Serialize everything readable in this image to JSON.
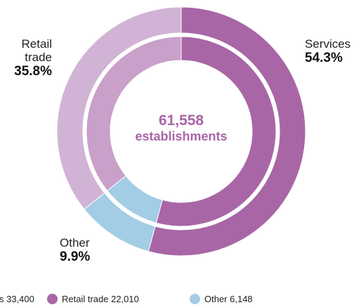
{
  "chart_data": {
    "type": "pie",
    "variant": "double-ring donut",
    "center_text": {
      "line1": "61,558",
      "line2": "establishments"
    },
    "slices": [
      {
        "name": "Services",
        "label_line1": "Services",
        "percent_label": "54.3%",
        "value": 33400,
        "color": "#a866a6"
      },
      {
        "name": "Other",
        "label_line1": "Other",
        "percent_label": "9.9%",
        "value": 6148,
        "color": "#a3cde4"
      },
      {
        "name": "Retail trade",
        "label_line1": "Retail",
        "label_line2": "trade",
        "percent_label": "35.8%",
        "value": 22010,
        "color": "#d1b3d5"
      }
    ],
    "legend": [
      {
        "text": "s 33,400",
        "color": "#a866a6"
      },
      {
        "text": "Retail trade 22,010",
        "color": "#a866a6"
      },
      {
        "text": "Other 6,148",
        "color": "#a3cde4"
      }
    ],
    "center_text_color": "#a866a6"
  }
}
